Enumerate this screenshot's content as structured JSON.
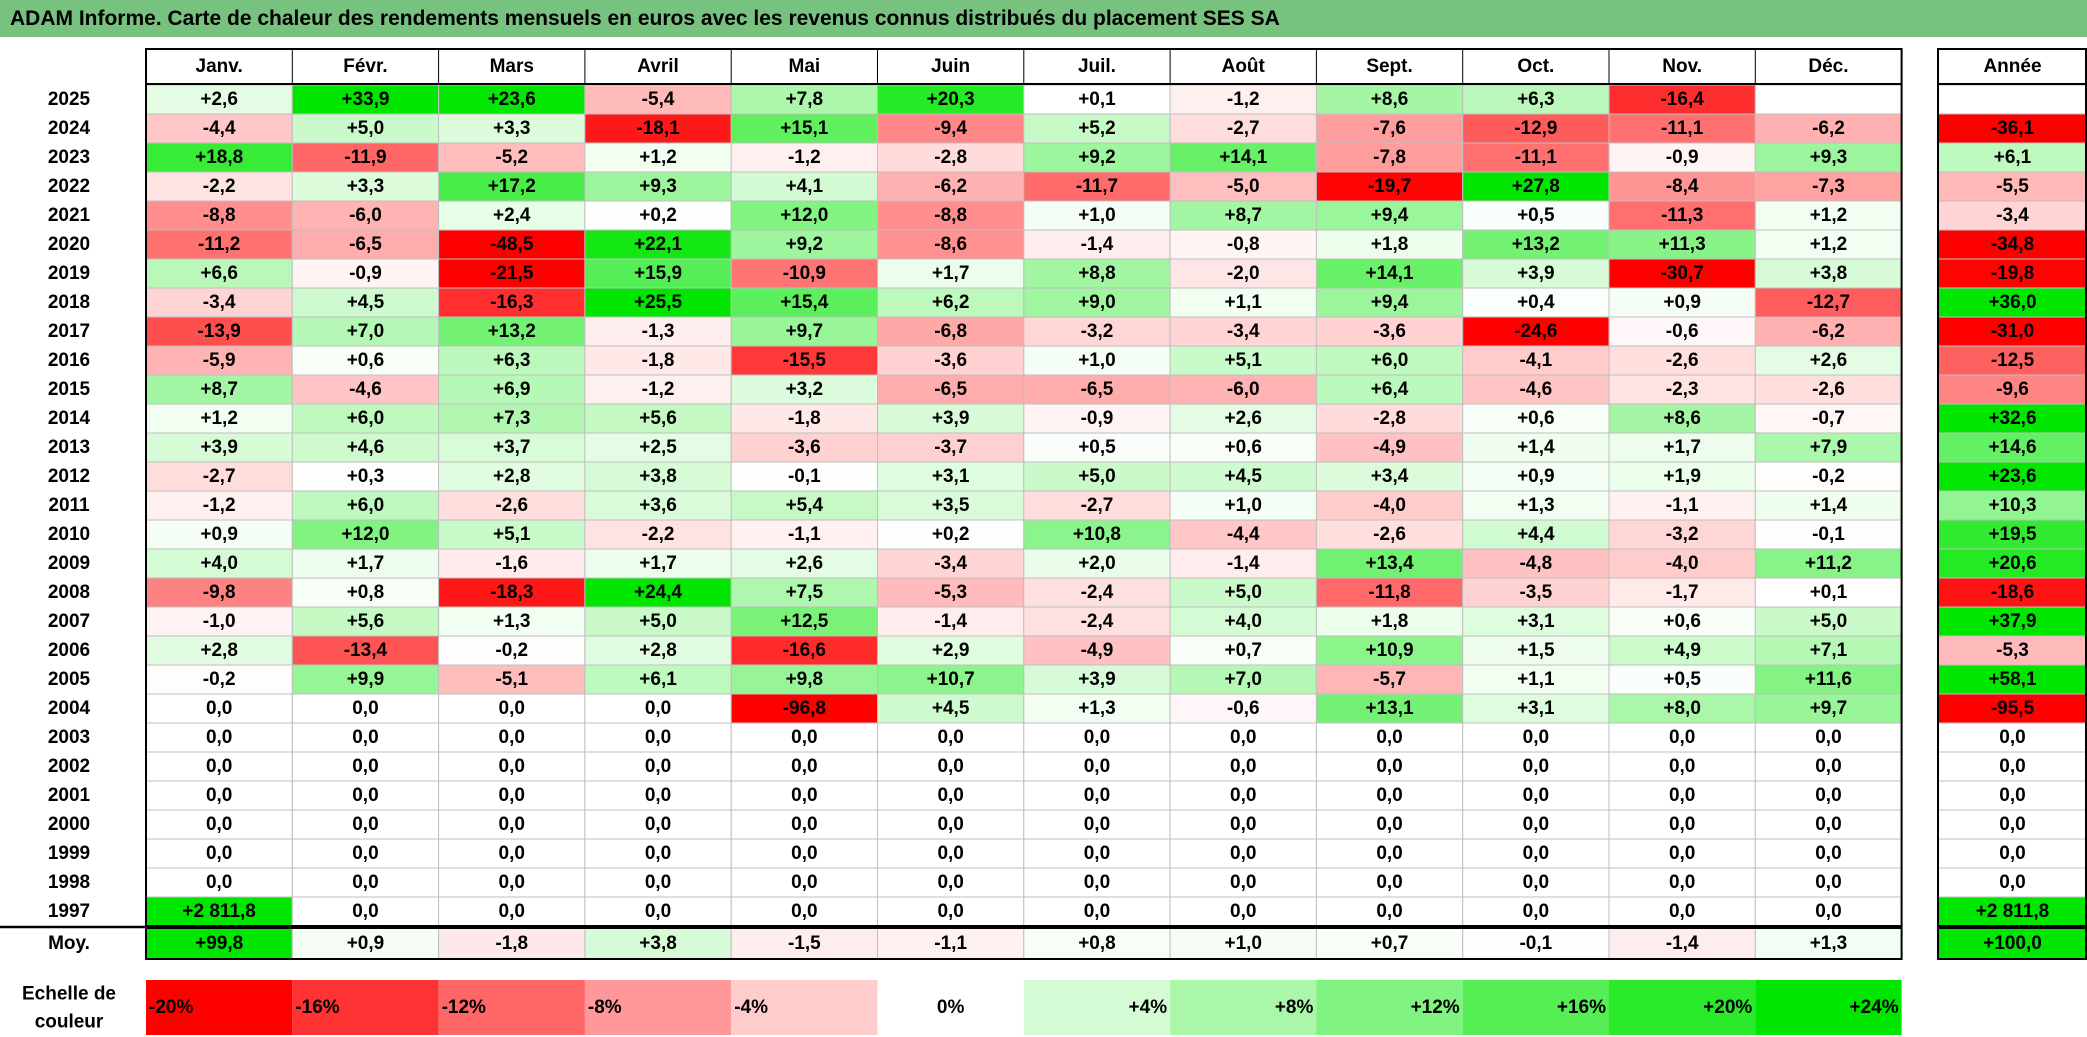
{
  "title": "ADAM Informe. Carte de chaleur des rendements mensuels en euros avec les revenus connus distribués du placement SES SA",
  "chart_data": {
    "type": "heatmap",
    "title": "ADAM Informe. Carte de chaleur des rendements mensuels en euros avec les revenus connus distribués du placement SES SA",
    "months": [
      "Janv.",
      "Févr.",
      "Mars",
      "Avril",
      "Mai",
      "Juin",
      "Juil.",
      "Août",
      "Sept.",
      "Oct.",
      "Nov.",
      "Déc."
    ],
    "year_header": "Année",
    "rows": [
      {
        "year": "2025",
        "values": [
          "+2,6",
          "+33,9",
          "+23,6",
          "-5,4",
          "+7,8",
          "+20,3",
          "+0,1",
          "-1,2",
          "+8,6",
          "+6,3",
          "-16,4",
          ""
        ],
        "annual": ""
      },
      {
        "year": "2024",
        "values": [
          "-4,4",
          "+5,0",
          "+3,3",
          "-18,1",
          "+15,1",
          "-9,4",
          "+5,2",
          "-2,7",
          "-7,6",
          "-12,9",
          "-11,1",
          "-6,2"
        ],
        "annual": "-36,1"
      },
      {
        "year": "2023",
        "values": [
          "+18,8",
          "-11,9",
          "-5,2",
          "+1,2",
          "-1,2",
          "-2,8",
          "+9,2",
          "+14,1",
          "-7,8",
          "-11,1",
          "-0,9",
          "+9,3"
        ],
        "annual": "+6,1"
      },
      {
        "year": "2022",
        "values": [
          "-2,2",
          "+3,3",
          "+17,2",
          "+9,3",
          "+4,1",
          "-6,2",
          "-11,7",
          "-5,0",
          "-19,7",
          "+27,8",
          "-8,4",
          "-7,3"
        ],
        "annual": "-5,5"
      },
      {
        "year": "2021",
        "values": [
          "-8,8",
          "-6,0",
          "+2,4",
          "+0,2",
          "+12,0",
          "-8,8",
          "+1,0",
          "+8,7",
          "+9,4",
          "+0,5",
          "-11,3",
          "+1,2"
        ],
        "annual": "-3,4"
      },
      {
        "year": "2020",
        "values": [
          "-11,2",
          "-6,5",
          "-48,5",
          "+22,1",
          "+9,2",
          "-8,6",
          "-1,4",
          "-0,8",
          "+1,8",
          "+13,2",
          "+11,3",
          "+1,2"
        ],
        "annual": "-34,8"
      },
      {
        "year": "2019",
        "values": [
          "+6,6",
          "-0,9",
          "-21,5",
          "+15,9",
          "-10,9",
          "+1,7",
          "+8,8",
          "-2,0",
          "+14,1",
          "+3,9",
          "-30,7",
          "+3,8"
        ],
        "annual": "-19,8"
      },
      {
        "year": "2018",
        "values": [
          "-3,4",
          "+4,5",
          "-16,3",
          "+25,5",
          "+15,4",
          "+6,2",
          "+9,0",
          "+1,1",
          "+9,4",
          "+0,4",
          "+0,9",
          "-12,7"
        ],
        "annual": "+36,0"
      },
      {
        "year": "2017",
        "values": [
          "-13,9",
          "+7,0",
          "+13,2",
          "-1,3",
          "+9,7",
          "-6,8",
          "-3,2",
          "-3,4",
          "-3,6",
          "-24,6",
          "-0,6",
          "-6,2"
        ],
        "annual": "-31,0"
      },
      {
        "year": "2016",
        "values": [
          "-5,9",
          "+0,6",
          "+6,3",
          "-1,8",
          "-15,5",
          "-3,6",
          "+1,0",
          "+5,1",
          "+6,0",
          "-4,1",
          "-2,6",
          "+2,6"
        ],
        "annual": "-12,5"
      },
      {
        "year": "2015",
        "values": [
          "+8,7",
          "-4,6",
          "+6,9",
          "-1,2",
          "+3,2",
          "-6,5",
          "-6,5",
          "-6,0",
          "+6,4",
          "-4,6",
          "-2,3",
          "-2,6"
        ],
        "annual": "-9,6"
      },
      {
        "year": "2014",
        "values": [
          "+1,2",
          "+6,0",
          "+7,3",
          "+5,6",
          "-1,8",
          "+3,9",
          "-0,9",
          "+2,6",
          "-2,8",
          "+0,6",
          "+8,6",
          "-0,7"
        ],
        "annual": "+32,6"
      },
      {
        "year": "2013",
        "values": [
          "+3,9",
          "+4,6",
          "+3,7",
          "+2,5",
          "-3,6",
          "-3,7",
          "+0,5",
          "+0,6",
          "-4,9",
          "+1,4",
          "+1,7",
          "+7,9"
        ],
        "annual": "+14,6"
      },
      {
        "year": "2012",
        "values": [
          "-2,7",
          "+0,3",
          "+2,8",
          "+3,8",
          "-0,1",
          "+3,1",
          "+5,0",
          "+4,5",
          "+3,4",
          "+0,9",
          "+1,9",
          "-0,2"
        ],
        "annual": "+23,6"
      },
      {
        "year": "2011",
        "values": [
          "-1,2",
          "+6,0",
          "-2,6",
          "+3,6",
          "+5,4",
          "+3,5",
          "-2,7",
          "+1,0",
          "-4,0",
          "+1,3",
          "-1,1",
          "+1,4"
        ],
        "annual": "+10,3"
      },
      {
        "year": "2010",
        "values": [
          "+0,9",
          "+12,0",
          "+5,1",
          "-2,2",
          "-1,1",
          "+0,2",
          "+10,8",
          "-4,4",
          "-2,6",
          "+4,4",
          "-3,2",
          "-0,1"
        ],
        "annual": "+19,5"
      },
      {
        "year": "2009",
        "values": [
          "+4,0",
          "+1,7",
          "-1,6",
          "+1,7",
          "+2,6",
          "-3,4",
          "+2,0",
          "-1,4",
          "+13,4",
          "-4,8",
          "-4,0",
          "+11,2"
        ],
        "annual": "+20,6"
      },
      {
        "year": "2008",
        "values": [
          "-9,8",
          "+0,8",
          "-18,3",
          "+24,4",
          "+7,5",
          "-5,3",
          "-2,4",
          "+5,0",
          "-11,8",
          "-3,5",
          "-1,7",
          "+0,1"
        ],
        "annual": "-18,6"
      },
      {
        "year": "2007",
        "values": [
          "-1,0",
          "+5,6",
          "+1,3",
          "+5,0",
          "+12,5",
          "-1,4",
          "-2,4",
          "+4,0",
          "+1,8",
          "+3,1",
          "+0,6",
          "+5,0"
        ],
        "annual": "+37,9"
      },
      {
        "year": "2006",
        "values": [
          "+2,8",
          "-13,4",
          "-0,2",
          "+2,8",
          "-16,6",
          "+2,9",
          "-4,9",
          "+0,7",
          "+10,9",
          "+1,5",
          "+4,9",
          "+7,1"
        ],
        "annual": "-5,3"
      },
      {
        "year": "2005",
        "values": [
          "-0,2",
          "+9,9",
          "-5,1",
          "+6,1",
          "+9,8",
          "+10,7",
          "+3,9",
          "+7,0",
          "-5,7",
          "+1,1",
          "+0,5",
          "+11,6"
        ],
        "annual": "+58,1"
      },
      {
        "year": "2004",
        "values": [
          "0,0",
          "0,0",
          "0,0",
          "0,0",
          "-96,8",
          "+4,5",
          "+1,3",
          "-0,6",
          "+13,1",
          "+3,1",
          "+8,0",
          "+9,7"
        ],
        "annual": "-95,5"
      },
      {
        "year": "2003",
        "values": [
          "0,0",
          "0,0",
          "0,0",
          "0,0",
          "0,0",
          "0,0",
          "0,0",
          "0,0",
          "0,0",
          "0,0",
          "0,0",
          "0,0"
        ],
        "annual": "0,0"
      },
      {
        "year": "2002",
        "values": [
          "0,0",
          "0,0",
          "0,0",
          "0,0",
          "0,0",
          "0,0",
          "0,0",
          "0,0",
          "0,0",
          "0,0",
          "0,0",
          "0,0"
        ],
        "annual": "0,0"
      },
      {
        "year": "2001",
        "values": [
          "0,0",
          "0,0",
          "0,0",
          "0,0",
          "0,0",
          "0,0",
          "0,0",
          "0,0",
          "0,0",
          "0,0",
          "0,0",
          "0,0"
        ],
        "annual": "0,0"
      },
      {
        "year": "2000",
        "values": [
          "0,0",
          "0,0",
          "0,0",
          "0,0",
          "0,0",
          "0,0",
          "0,0",
          "0,0",
          "0,0",
          "0,0",
          "0,0",
          "0,0"
        ],
        "annual": "0,0"
      },
      {
        "year": "1999",
        "values": [
          "0,0",
          "0,0",
          "0,0",
          "0,0",
          "0,0",
          "0,0",
          "0,0",
          "0,0",
          "0,0",
          "0,0",
          "0,0",
          "0,0"
        ],
        "annual": "0,0"
      },
      {
        "year": "1998",
        "values": [
          "0,0",
          "0,0",
          "0,0",
          "0,0",
          "0,0",
          "0,0",
          "0,0",
          "0,0",
          "0,0",
          "0,0",
          "0,0",
          "0,0"
        ],
        "annual": "0,0"
      },
      {
        "year": "1997",
        "values": [
          "+2 811,8",
          "0,0",
          "0,0",
          "0,0",
          "0,0",
          "0,0",
          "0,0",
          "0,0",
          "0,0",
          "0,0",
          "0,0",
          "0,0"
        ],
        "annual": "+2 811,8"
      }
    ],
    "average": {
      "label": "Moy.",
      "values": [
        "+99,8",
        "+0,9",
        "-1,8",
        "+3,8",
        "-1,5",
        "-1,1",
        "+0,8",
        "+1,0",
        "+0,7",
        "-0,1",
        "-1,4",
        "+1,3"
      ],
      "annual": "+100,0"
    },
    "scale": {
      "label_line1": "Echelle de",
      "label_line2": "couleur",
      "steps": [
        "-20%",
        "-16%",
        "-12%",
        "-8%",
        "-4%",
        "0%",
        "+4%",
        "+8%",
        "+12%",
        "+16%",
        "+20%",
        "+24%"
      ],
      "step_values": [
        -20,
        -16,
        -12,
        -8,
        -4,
        0,
        4,
        8,
        12,
        16,
        20,
        24
      ]
    },
    "colors": {
      "negative": "#ff0000",
      "positive": "#00e600",
      "neutral": "#ffffff",
      "title_bar": "#76c27e"
    }
  }
}
